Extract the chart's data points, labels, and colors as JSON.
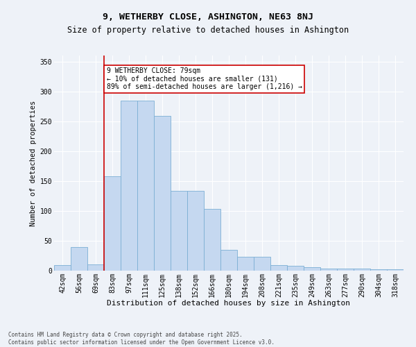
{
  "title": "9, WETHERBY CLOSE, ASHINGTON, NE63 8NJ",
  "subtitle": "Size of property relative to detached houses in Ashington",
  "xlabel": "Distribution of detached houses by size in Ashington",
  "ylabel": "Number of detached properties",
  "categories": [
    "42sqm",
    "56sqm",
    "69sqm",
    "83sqm",
    "97sqm",
    "111sqm",
    "125sqm",
    "138sqm",
    "152sqm",
    "166sqm",
    "180sqm",
    "194sqm",
    "208sqm",
    "221sqm",
    "235sqm",
    "249sqm",
    "263sqm",
    "277sqm",
    "290sqm",
    "304sqm",
    "318sqm"
  ],
  "values": [
    9,
    40,
    10,
    158,
    285,
    285,
    259,
    134,
    134,
    103,
    35,
    23,
    23,
    9,
    8,
    6,
    4,
    4,
    3,
    2,
    2
  ],
  "bar_color": "#c5d8f0",
  "bar_edge_color": "#7bafd4",
  "vline_x_index": 3,
  "vline_color": "#cc0000",
  "annotation_text": "9 WETHERBY CLOSE: 79sqm\n← 10% of detached houses are smaller (131)\n89% of semi-detached houses are larger (1,216) →",
  "annotation_box_color": "#cc0000",
  "ylim": [
    0,
    360
  ],
  "yticks": [
    0,
    50,
    100,
    150,
    200,
    250,
    300,
    350
  ],
  "title_fontsize": 9.5,
  "subtitle_fontsize": 8.5,
  "xlabel_fontsize": 8,
  "ylabel_fontsize": 7.5,
  "tick_fontsize": 7,
  "annotation_fontsize": 7,
  "footer_text": "Contains HM Land Registry data © Crown copyright and database right 2025.\nContains public sector information licensed under the Open Government Licence v3.0.",
  "footer_fontsize": 5.5,
  "background_color": "#eef2f8"
}
